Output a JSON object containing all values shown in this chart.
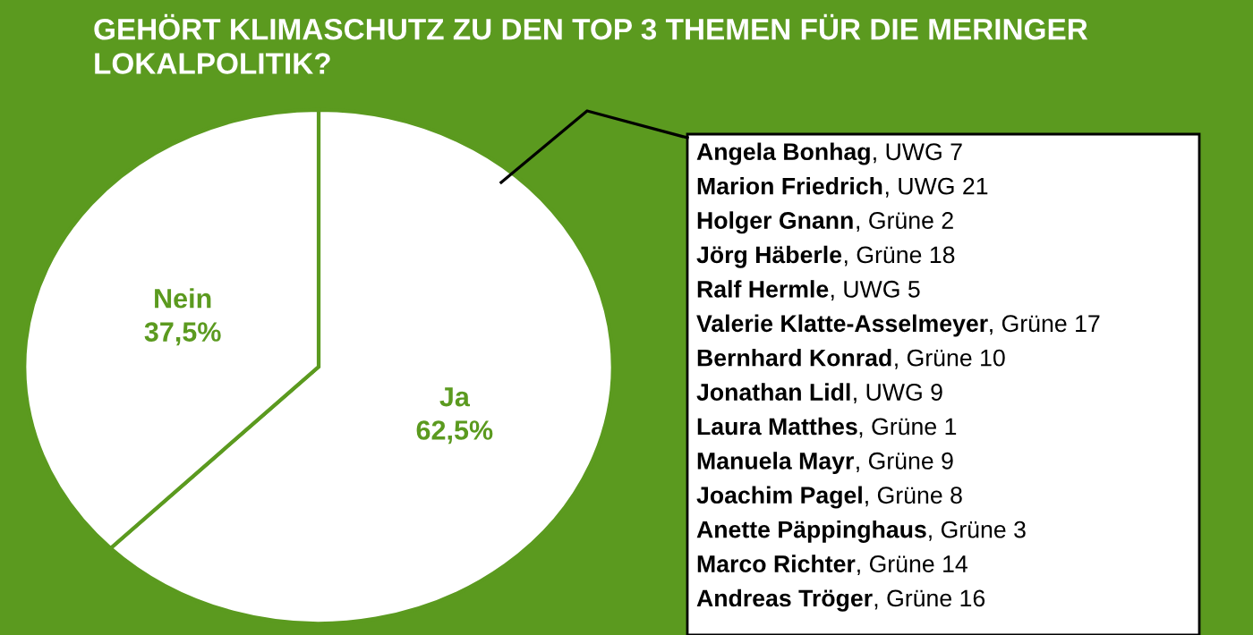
{
  "chart_data": {
    "type": "pie",
    "title": "GEHÖRT KLIMASCHUTZ ZU DEN TOP 3 THEMEN FÜR DIE MERINGER LOKALPOLITIK?",
    "categories": [
      "Ja",
      "Nein"
    ],
    "values": [
      62.5,
      37.5
    ],
    "colors": [
      "#ffffff",
      "#ffffff"
    ],
    "value_labels": [
      "62,5%",
      "37,5%"
    ],
    "annotations": [
      "Angela Bonhag, UWG 7",
      "Marion Friedrich, UWG 21",
      "Holger Gnann, Grüne 2",
      "Jörg Häberle, Grüne 18",
      "Ralf Hermle, UWG 5",
      "Valerie Klatte-Asselmeyer, Grüne 17",
      "Bernhard Konrad, Grüne 10",
      "Jonathan Lidl, UWG 9",
      "Laura Matthes, Grüne 1",
      "Manuela Mayr, Grüne 9",
      "Joachim Pagel, Grüne 8",
      "Anette Päppinghaus, Grüne 3",
      "Marco Richter, Grüne 14",
      "Andreas Tröger, Grüne 16"
    ]
  }
}
